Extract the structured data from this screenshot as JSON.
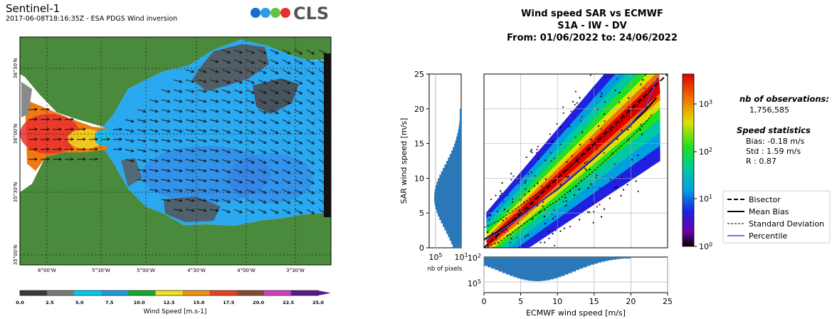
{
  "left_panel": {
    "title": "Sentinel-1",
    "subtitle": "2017-06-08T18:16:35Z - ESA PDGS Wind inversion",
    "logo_text": "CLS",
    "lon_ticks": [
      "6°00'W",
      "5°30'W",
      "5°00'W",
      "4°30'W",
      "4°00'W",
      "3°30'W"
    ],
    "lat_ticks": [
      "36°30'N",
      "36°00'N",
      "35°30'N",
      "35°00'N"
    ],
    "colorbar": {
      "ticks": [
        "0.0",
        "2.5",
        "5.0",
        "7.5",
        "10.0",
        "12.5",
        "15.0",
        "17.5",
        "20.0",
        "22.5",
        "25.0"
      ],
      "label": "Wind Speed [m.s-1]",
      "colors": [
        "#3a3a3a",
        "#7a7a7a",
        "#00c8f0",
        "#1a9be0",
        "#1aaa2a",
        "#f0e020",
        "#f09010",
        "#e84020",
        "#8a4a30",
        "#d040c0",
        "#5a1a8a"
      ]
    },
    "colors": {
      "land": "#4a8a3c",
      "sea": "#2aa8f0"
    }
  },
  "chart_data": {
    "type": "heatmap",
    "title_lines": [
      "Wind speed SAR vs ECMWF",
      "S1A - IW - DV",
      "From: 01/06/2022  to: 24/06/2022"
    ],
    "xlabel": "ECMWF wind speed [m/s]",
    "ylabel": "SAR wind speed [m/s]",
    "xlim": [
      0,
      25
    ],
    "ylim": [
      0,
      25
    ],
    "x_ticks": [
      0,
      5,
      10,
      15,
      20,
      25
    ],
    "y_ticks": [
      0,
      5,
      10,
      15,
      20,
      25
    ],
    "grid": true,
    "series": [
      {
        "name": "Bisector",
        "x": [
          0,
          25
        ],
        "y": [
          0,
          25
        ]
      },
      {
        "name": "Mean Bias",
        "x": [
          0,
          2,
          5,
          8,
          10,
          12,
          15,
          18,
          20,
          22,
          23.5
        ],
        "y": [
          1.2,
          2.4,
          4.6,
          6.9,
          8.4,
          10.2,
          12.9,
          15.8,
          17.7,
          19.8,
          21.6
        ]
      },
      {
        "name": "Standard Deviation",
        "x": [
          0,
          2,
          5,
          8,
          10,
          12,
          15,
          18,
          20,
          22,
          23
        ],
        "y": [
          2.9,
          3.9,
          6.1,
          8.4,
          10.0,
          11.9,
          14.7,
          17.6,
          19.6,
          21.7,
          23.1
        ]
      },
      {
        "name": "Standard Deviation",
        "x": [
          0,
          2,
          5,
          8,
          10,
          12,
          15,
          18,
          20,
          22,
          23
        ],
        "y": [
          0,
          0.8,
          3.1,
          5.4,
          6.8,
          8.5,
          11.1,
          14.0,
          15.9,
          18.0,
          19.4
        ]
      },
      {
        "name": "Percentile",
        "x": [
          0,
          2,
          5,
          8,
          10,
          12,
          15,
          18,
          20,
          22,
          23.6
        ],
        "y": [
          1.1,
          2.2,
          4.5,
          6.9,
          8.5,
          10.3,
          13.0,
          15.9,
          17.8,
          20.2,
          24.5
        ]
      }
    ],
    "legend": {
      "placement": "right",
      "entries": [
        "Bisector",
        "Mean Bias",
        "Standard Deviation",
        "Percentile"
      ]
    },
    "colorbar": {
      "scale": "log",
      "ticks": [
        "10^0",
        "10^1",
        "10^2",
        "10^3"
      ]
    },
    "side_histogram": {
      "label": "nb of pixels",
      "ticks": [
        "10^5",
        "10^1"
      ]
    },
    "bottom_histogram": {
      "ticks": [
        "10^2",
        "10^5"
      ]
    },
    "stats": {
      "obs_title": "nb of observations:",
      "obs_value": "1,756,585",
      "speed_title": "Speed statistics",
      "bias": "Bias: -0.18 m/s",
      "std": "Std : 1.59 m/s",
      "r": "R   : 0.87"
    }
  }
}
